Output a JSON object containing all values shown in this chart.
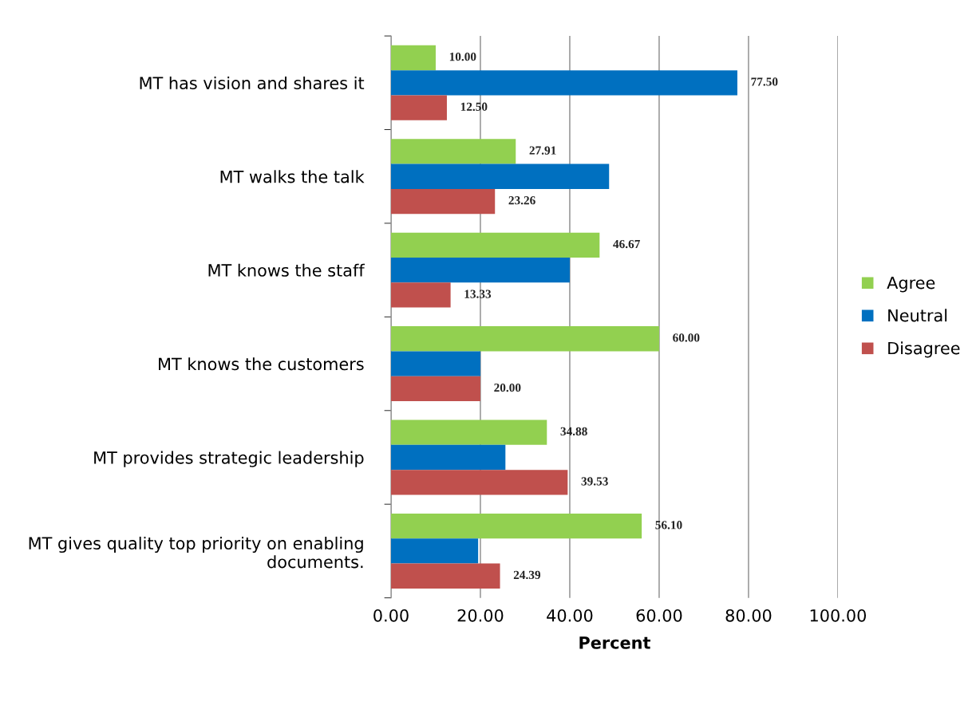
{
  "chart_data": {
    "type": "bar",
    "orientation": "horizontal",
    "xlabel": "Percent",
    "categories": [
      "MT has vision and shares it",
      "MT walks the talk",
      "MT knows the staff",
      "MT knows the customers",
      "MT provides strategic leadership",
      "MT gives quality top priority on enabling documents."
    ],
    "series": [
      {
        "name": "Agree",
        "color": "#92d050",
        "values": [
          10.0,
          27.91,
          46.67,
          60.0,
          34.88,
          56.1
        ],
        "value_labels": [
          "10.00",
          "27.91",
          "46.67",
          "60.00",
          "34.88",
          "56.10"
        ]
      },
      {
        "name": "Neutral",
        "color": "#0070c0",
        "values": [
          77.5,
          48.8,
          40.0,
          20.0,
          25.6,
          19.5
        ],
        "value_labels": [
          "77.50",
          null,
          null,
          null,
          null,
          null
        ]
      },
      {
        "name": "Disagree",
        "color": "#c0504d",
        "values": [
          12.5,
          23.26,
          13.33,
          20.0,
          39.53,
          24.39
        ],
        "value_labels": [
          "12.50",
          "23.26",
          "13.33",
          "20.00",
          "39.53",
          "24.39"
        ]
      }
    ],
    "xlim": [
      0,
      100
    ],
    "xticks": [
      {
        "value": 0,
        "label": "0.00"
      },
      {
        "value": 20,
        "label": "20.00"
      },
      {
        "value": 40,
        "label": "40.00"
      },
      {
        "value": 60,
        "label": "60.00"
      },
      {
        "value": 80,
        "label": "80.00"
      },
      {
        "value": 100,
        "label": "100.00"
      }
    ],
    "grid": "x",
    "legend": "right"
  }
}
